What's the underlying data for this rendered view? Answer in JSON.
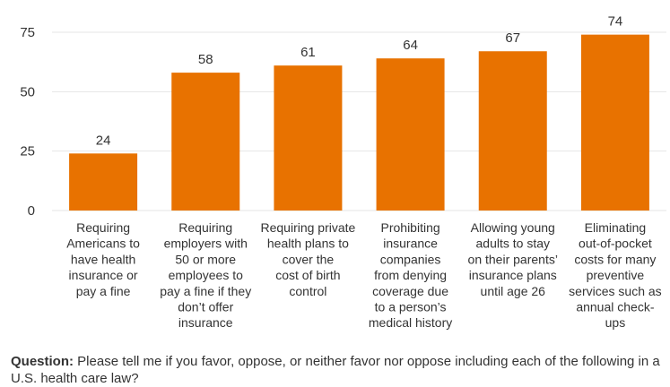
{
  "chart_data": {
    "type": "bar",
    "categories": [
      "Requiring Americans to have health insurance or pay a fine",
      "Requiring employers with 50 or more employees to pay a fine if they don't offer insurance",
      "Requiring private health plans to cover the cost of birth control",
      "Prohibiting insurance companies from denying coverage due to a person's medical history",
      "Allowing young adults to stay on their parents' insurance plans until age 26",
      "Eliminating out-of-pocket costs for many preventive services such as annual check-ups"
    ],
    "category_lines": [
      [
        "Requiring",
        "Americans to",
        "have health",
        "insurance or",
        "pay a fine"
      ],
      [
        "Requiring",
        "employers with",
        "50 or more",
        "employees to",
        "pay a fine if they",
        "don’t offer",
        "insurance"
      ],
      [
        "Requiring private",
        "health plans to",
        "cover the",
        "cost of birth",
        "control"
      ],
      [
        "Prohibiting",
        "insurance",
        "companies",
        "from denying",
        "coverage due",
        "to a person’s",
        "medical history"
      ],
      [
        "Allowing young",
        "adults to stay",
        "on their parents’",
        "insurance plans",
        "until age 26"
      ],
      [
        "Eliminating",
        "out-of-pocket",
        "costs for many",
        "preventive",
        "services such as",
        "annual check-",
        "ups"
      ]
    ],
    "values": [
      24,
      58,
      61,
      64,
      67,
      74
    ],
    "yticks": [
      0,
      25,
      50,
      75
    ],
    "ylim": [
      0,
      75
    ],
    "grid": true,
    "colors": {
      "bar": "#E87200",
      "grid": "#e6e6e6"
    },
    "title": "",
    "xlabel": "",
    "ylabel": ""
  },
  "footnote": {
    "label": "Question:",
    "text": " Please tell me if you favor, oppose, or neither favor nor oppose including each of the following in a U.S. health care law?"
  }
}
